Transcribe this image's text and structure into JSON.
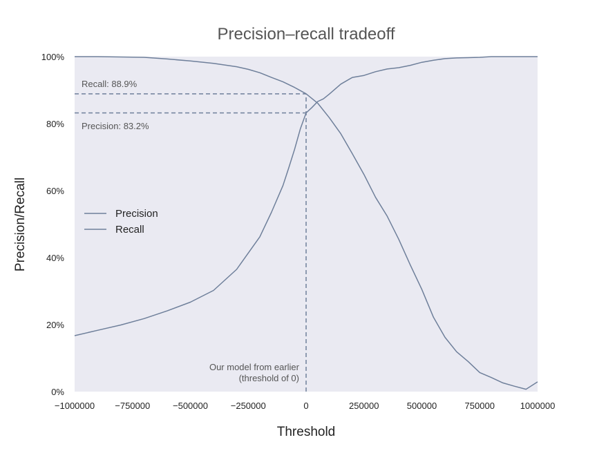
{
  "chart_data": {
    "type": "line",
    "title": "Precision–recall tradeoff",
    "xlabel": "Threshold",
    "ylabel": "Precision/Recall",
    "xlim": [
      -1000000,
      1000000
    ],
    "ylim": [
      0,
      1
    ],
    "grid": false,
    "legend_position": "center-left",
    "x_ticks": [
      -1000000,
      -750000,
      -500000,
      -250000,
      0,
      250000,
      500000,
      750000,
      1000000
    ],
    "x_tick_labels": [
      "−1000000",
      "−750000",
      "−500000",
      "−250000",
      "0",
      "250000",
      "500000",
      "750000",
      "1000000"
    ],
    "y_ticks": [
      0,
      0.2,
      0.4,
      0.6,
      0.8,
      1.0
    ],
    "y_tick_labels": [
      "0%",
      "20%",
      "40%",
      "60%",
      "80%",
      "100%"
    ],
    "series": [
      {
        "name": "Precision",
        "color": "#6e7f9a",
        "x": [
          -1000000,
          -900000,
          -800000,
          -700000,
          -600000,
          -500000,
          -400000,
          -300000,
          -200000,
          -150000,
          -100000,
          -75000,
          -50000,
          -25000,
          0,
          25000,
          50000,
          75000,
          100000,
          150000,
          200000,
          250000,
          300000,
          350000,
          400000,
          450000,
          500000,
          550000,
          600000,
          650000,
          700000,
          750000,
          800000,
          850000,
          900000,
          950000,
          1000000
        ],
        "values": [
          0.167,
          0.183,
          0.199,
          0.218,
          0.241,
          0.267,
          0.302,
          0.365,
          0.462,
          0.535,
          0.615,
          0.668,
          0.723,
          0.784,
          0.832,
          0.848,
          0.866,
          0.874,
          0.888,
          0.918,
          0.938,
          0.944,
          0.955,
          0.963,
          0.967,
          0.974,
          0.983,
          0.989,
          0.994,
          0.996,
          0.997,
          0.998,
          1.0,
          1.0,
          1.0,
          1.0,
          1.0
        ]
      },
      {
        "name": "Recall",
        "color": "#6e7f9a",
        "x": [
          -1000000,
          -900000,
          -800000,
          -700000,
          -600000,
          -500000,
          -400000,
          -300000,
          -250000,
          -200000,
          -150000,
          -100000,
          -50000,
          0,
          50000,
          100000,
          150000,
          200000,
          250000,
          300000,
          350000,
          400000,
          450000,
          500000,
          550000,
          600000,
          650000,
          700000,
          750000,
          800000,
          850000,
          900000,
          950000,
          1000000
        ],
        "values": [
          1.0,
          1.0,
          0.999,
          0.998,
          0.993,
          0.987,
          0.98,
          0.97,
          0.962,
          0.952,
          0.938,
          0.925,
          0.908,
          0.889,
          0.861,
          0.818,
          0.77,
          0.71,
          0.648,
          0.58,
          0.524,
          0.455,
          0.378,
          0.305,
          0.222,
          0.162,
          0.119,
          0.09,
          0.057,
          0.042,
          0.026,
          0.016,
          0.007,
          0.029
        ]
      }
    ],
    "annotations": {
      "threshold_x": 0,
      "recall_value": 0.889,
      "precision_value": 0.832,
      "recall_label": "Recall: 88.9%",
      "precision_label": "Precision: 83.2%",
      "model_label_line1": "Our model from earlier",
      "model_label_line2": "(threshold of 0)"
    }
  }
}
